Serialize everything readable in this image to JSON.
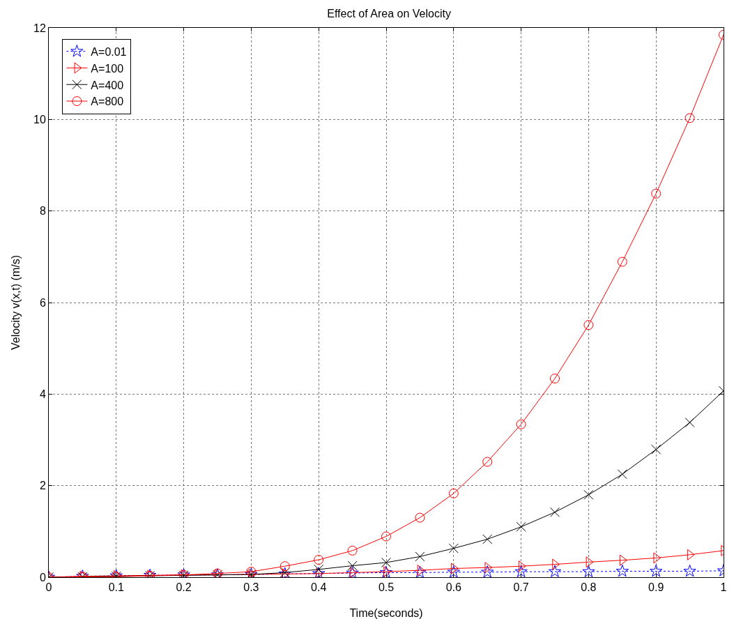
{
  "chart_data": {
    "type": "line",
    "title": "Effect of Area on Velocity",
    "xlabel": "Time(seconds)",
    "ylabel": "Velocity v(x,t) (m/s)",
    "x": [
      0,
      0.05,
      0.1,
      0.15,
      0.2,
      0.25,
      0.3,
      0.35,
      0.4,
      0.45,
      0.5,
      0.55,
      0.6,
      0.65,
      0.7,
      0.75,
      0.8,
      0.85,
      0.9,
      0.95,
      1
    ],
    "series": [
      {
        "name": "A=0.01",
        "color": "#0000ff",
        "marker": "star",
        "line_style": "dotted",
        "values": [
          0,
          0.02,
          0.03,
          0.04,
          0.05,
          0.05,
          0.06,
          0.07,
          0.08,
          0.09,
          0.1,
          0.1,
          0.11,
          0.11,
          0.12,
          0.12,
          0.12,
          0.13,
          0.13,
          0.13,
          0.14
        ]
      },
      {
        "name": "A=100",
        "color": "#ff0000",
        "marker": "triangle",
        "line_style": "solid",
        "values": [
          0,
          0.02,
          0.03,
          0.04,
          0.05,
          0.05,
          0.06,
          0.07,
          0.08,
          0.1,
          0.12,
          0.15,
          0.19,
          0.21,
          0.24,
          0.28,
          0.33,
          0.37,
          0.42,
          0.49,
          0.58
        ]
      },
      {
        "name": "A=400",
        "color": "#000000",
        "marker": "cross",
        "line_style": "solid",
        "values": [
          0,
          0.01,
          0.02,
          0.03,
          0.04,
          0.05,
          0.06,
          0.1,
          0.17,
          0.25,
          0.32,
          0.45,
          0.63,
          0.83,
          1.1,
          1.42,
          1.8,
          2.25,
          2.79,
          3.38,
          4.07
        ]
      },
      {
        "name": "A=800",
        "color": "#ff0000",
        "marker": "circle",
        "line_style": "solid",
        "values": [
          0,
          0.01,
          0.01,
          0.03,
          0.05,
          0.08,
          0.12,
          0.24,
          0.38,
          0.58,
          0.89,
          1.3,
          1.83,
          2.52,
          3.34,
          4.34,
          5.51,
          6.89,
          8.38,
          10.03,
          11.85
        ]
      }
    ],
    "xlim": [
      0,
      1
    ],
    "xticks": [
      0,
      0.1,
      0.2,
      0.3,
      0.4,
      0.5,
      0.6,
      0.7,
      0.8,
      0.9,
      1
    ],
    "ylim": [
      0,
      12
    ],
    "yticks": [
      0,
      2,
      4,
      6,
      8,
      10,
      12
    ],
    "grid": true,
    "legend": "top left"
  }
}
